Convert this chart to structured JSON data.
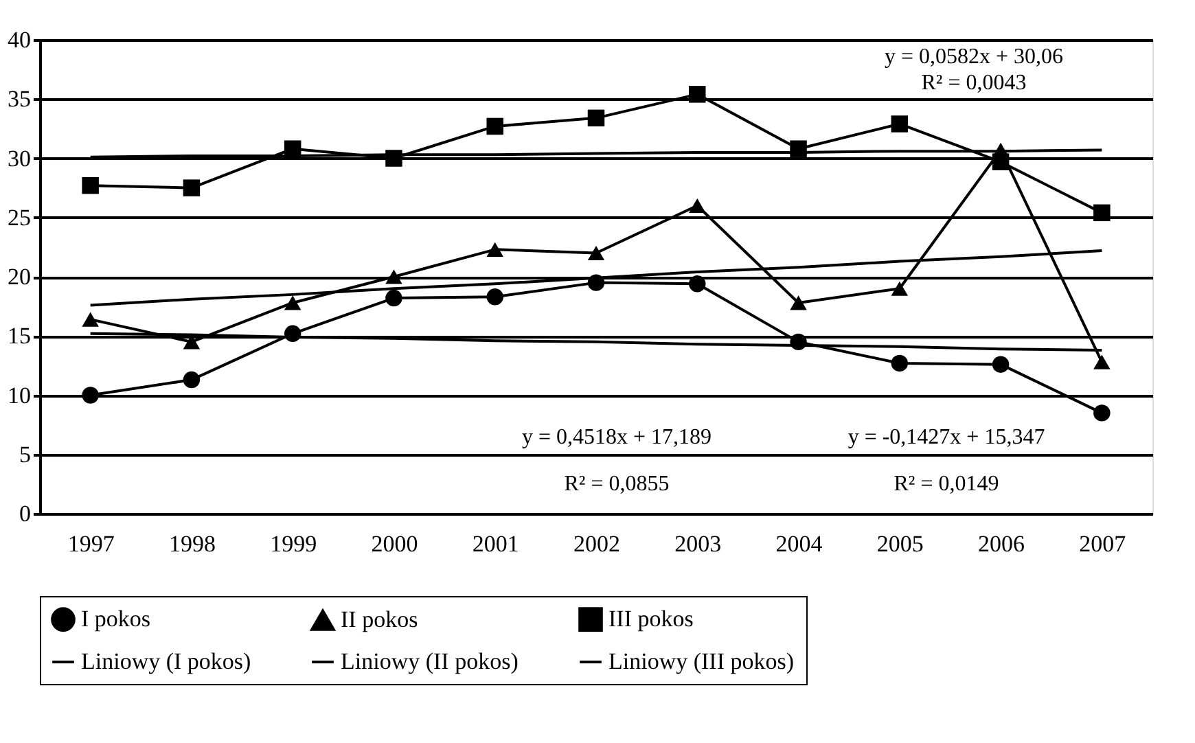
{
  "chart_data": {
    "type": "line",
    "categories": [
      "1997",
      "1998",
      "1999",
      "2000",
      "2001",
      "2002",
      "2003",
      "2004",
      "2005",
      "2006",
      "2007"
    ],
    "series": [
      {
        "name": "I pokos",
        "color": "#000000",
        "marker": "circle",
        "values": [
          10.0,
          11.3,
          15.2,
          18.2,
          18.3,
          19.5,
          19.4,
          14.5,
          12.7,
          12.6,
          8.5
        ]
      },
      {
        "name": "II pokos",
        "color": "#000000",
        "marker": "triangle",
        "values": [
          16.4,
          14.5,
          17.8,
          20.0,
          22.3,
          22.0,
          26.0,
          17.8,
          19.0,
          30.7,
          12.8
        ]
      },
      {
        "name": "III pokos",
        "color": "#000000",
        "marker": "square",
        "values": [
          27.7,
          27.5,
          30.8,
          30.0,
          32.7,
          33.4,
          35.4,
          30.8,
          32.9,
          29.7,
          25.4
        ]
      },
      {
        "name": "Liniowy (I pokos)",
        "color": "#000000",
        "marker": "none",
        "values": [
          15.2,
          15.1,
          14.9,
          14.8,
          14.6,
          14.5,
          14.3,
          14.2,
          14.1,
          13.9,
          13.8
        ]
      },
      {
        "name": "Liniowy (II pokos)",
        "color": "#000000",
        "marker": "none",
        "values": [
          17.6,
          18.1,
          18.5,
          19.0,
          19.4,
          19.9,
          20.4,
          20.8,
          21.3,
          21.7,
          22.2
        ]
      },
      {
        "name": "Liniowy (III pokos)",
        "color": "#000000",
        "marker": "none",
        "values": [
          30.1,
          30.2,
          30.2,
          30.3,
          30.3,
          30.4,
          30.5,
          30.5,
          30.6,
          30.6,
          30.7
        ]
      }
    ],
    "ylim": [
      0,
      40
    ],
    "yticks": [
      0,
      5,
      10,
      15,
      20,
      25,
      30,
      35,
      40
    ],
    "grid": "y",
    "legend": "bottom",
    "line_style": "solid",
    "annotations": [
      "y = 0,0582x + 30,06",
      "R² = 0,0043",
      "y = 0,4518x + 17,189",
      "R² = 0,0855",
      "y = -0,1427x + 15,347",
      "R² = 0,0149"
    ]
  }
}
